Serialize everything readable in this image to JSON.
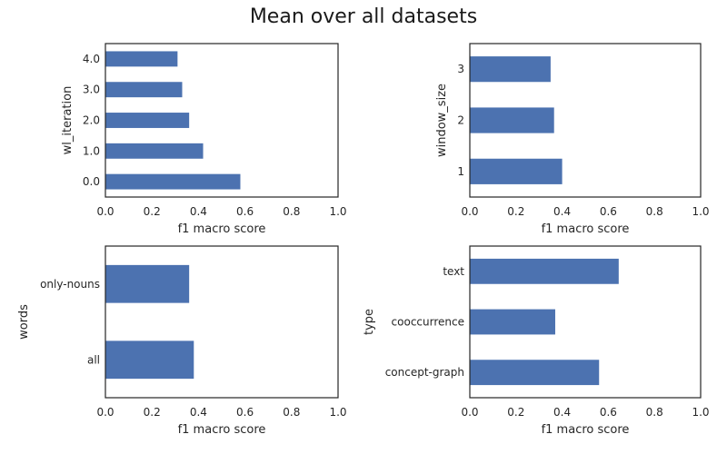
{
  "figure": {
    "title": "Mean over all datasets"
  },
  "style": {
    "bar_color": "#4c72b0",
    "axis_color": "#262626",
    "background": "#ffffff"
  },
  "chart_data": [
    {
      "type": "bar",
      "orientation": "horizontal",
      "categories": [
        "0.0",
        "1.0",
        "2.0",
        "3.0",
        "4.0"
      ],
      "values": [
        0.58,
        0.42,
        0.36,
        0.33,
        0.31
      ],
      "xlabel": "f1 macro score",
      "ylabel": "wl_iteration",
      "xlim": [
        0,
        1
      ],
      "xticks": [
        "0.0",
        "0.2",
        "0.4",
        "0.6",
        "0.8",
        "1.0"
      ],
      "grid": false
    },
    {
      "type": "bar",
      "orientation": "horizontal",
      "categories": [
        "1",
        "2",
        "3"
      ],
      "values": [
        0.4,
        0.365,
        0.35
      ],
      "xlabel": "f1 macro score",
      "ylabel": "window_size",
      "xlim": [
        0,
        1
      ],
      "xticks": [
        "0.0",
        "0.2",
        "0.4",
        "0.6",
        "0.8",
        "1.0"
      ],
      "grid": false
    },
    {
      "type": "bar",
      "orientation": "horizontal",
      "categories": [
        "all",
        "only-nouns"
      ],
      "values": [
        0.38,
        0.36
      ],
      "xlabel": "f1 macro score",
      "ylabel": "words",
      "xlim": [
        0,
        1
      ],
      "xticks": [
        "0.0",
        "0.2",
        "0.4",
        "0.6",
        "0.8",
        "1.0"
      ],
      "grid": false
    },
    {
      "type": "bar",
      "orientation": "horizontal",
      "categories": [
        "concept-graph",
        "cooccurrence",
        "text"
      ],
      "values": [
        0.56,
        0.37,
        0.645
      ],
      "xlabel": "f1 macro score",
      "ylabel": "type",
      "xlim": [
        0,
        1
      ],
      "xticks": [
        "0.0",
        "0.2",
        "0.4",
        "0.6",
        "0.8",
        "1.0"
      ],
      "grid": false
    }
  ]
}
